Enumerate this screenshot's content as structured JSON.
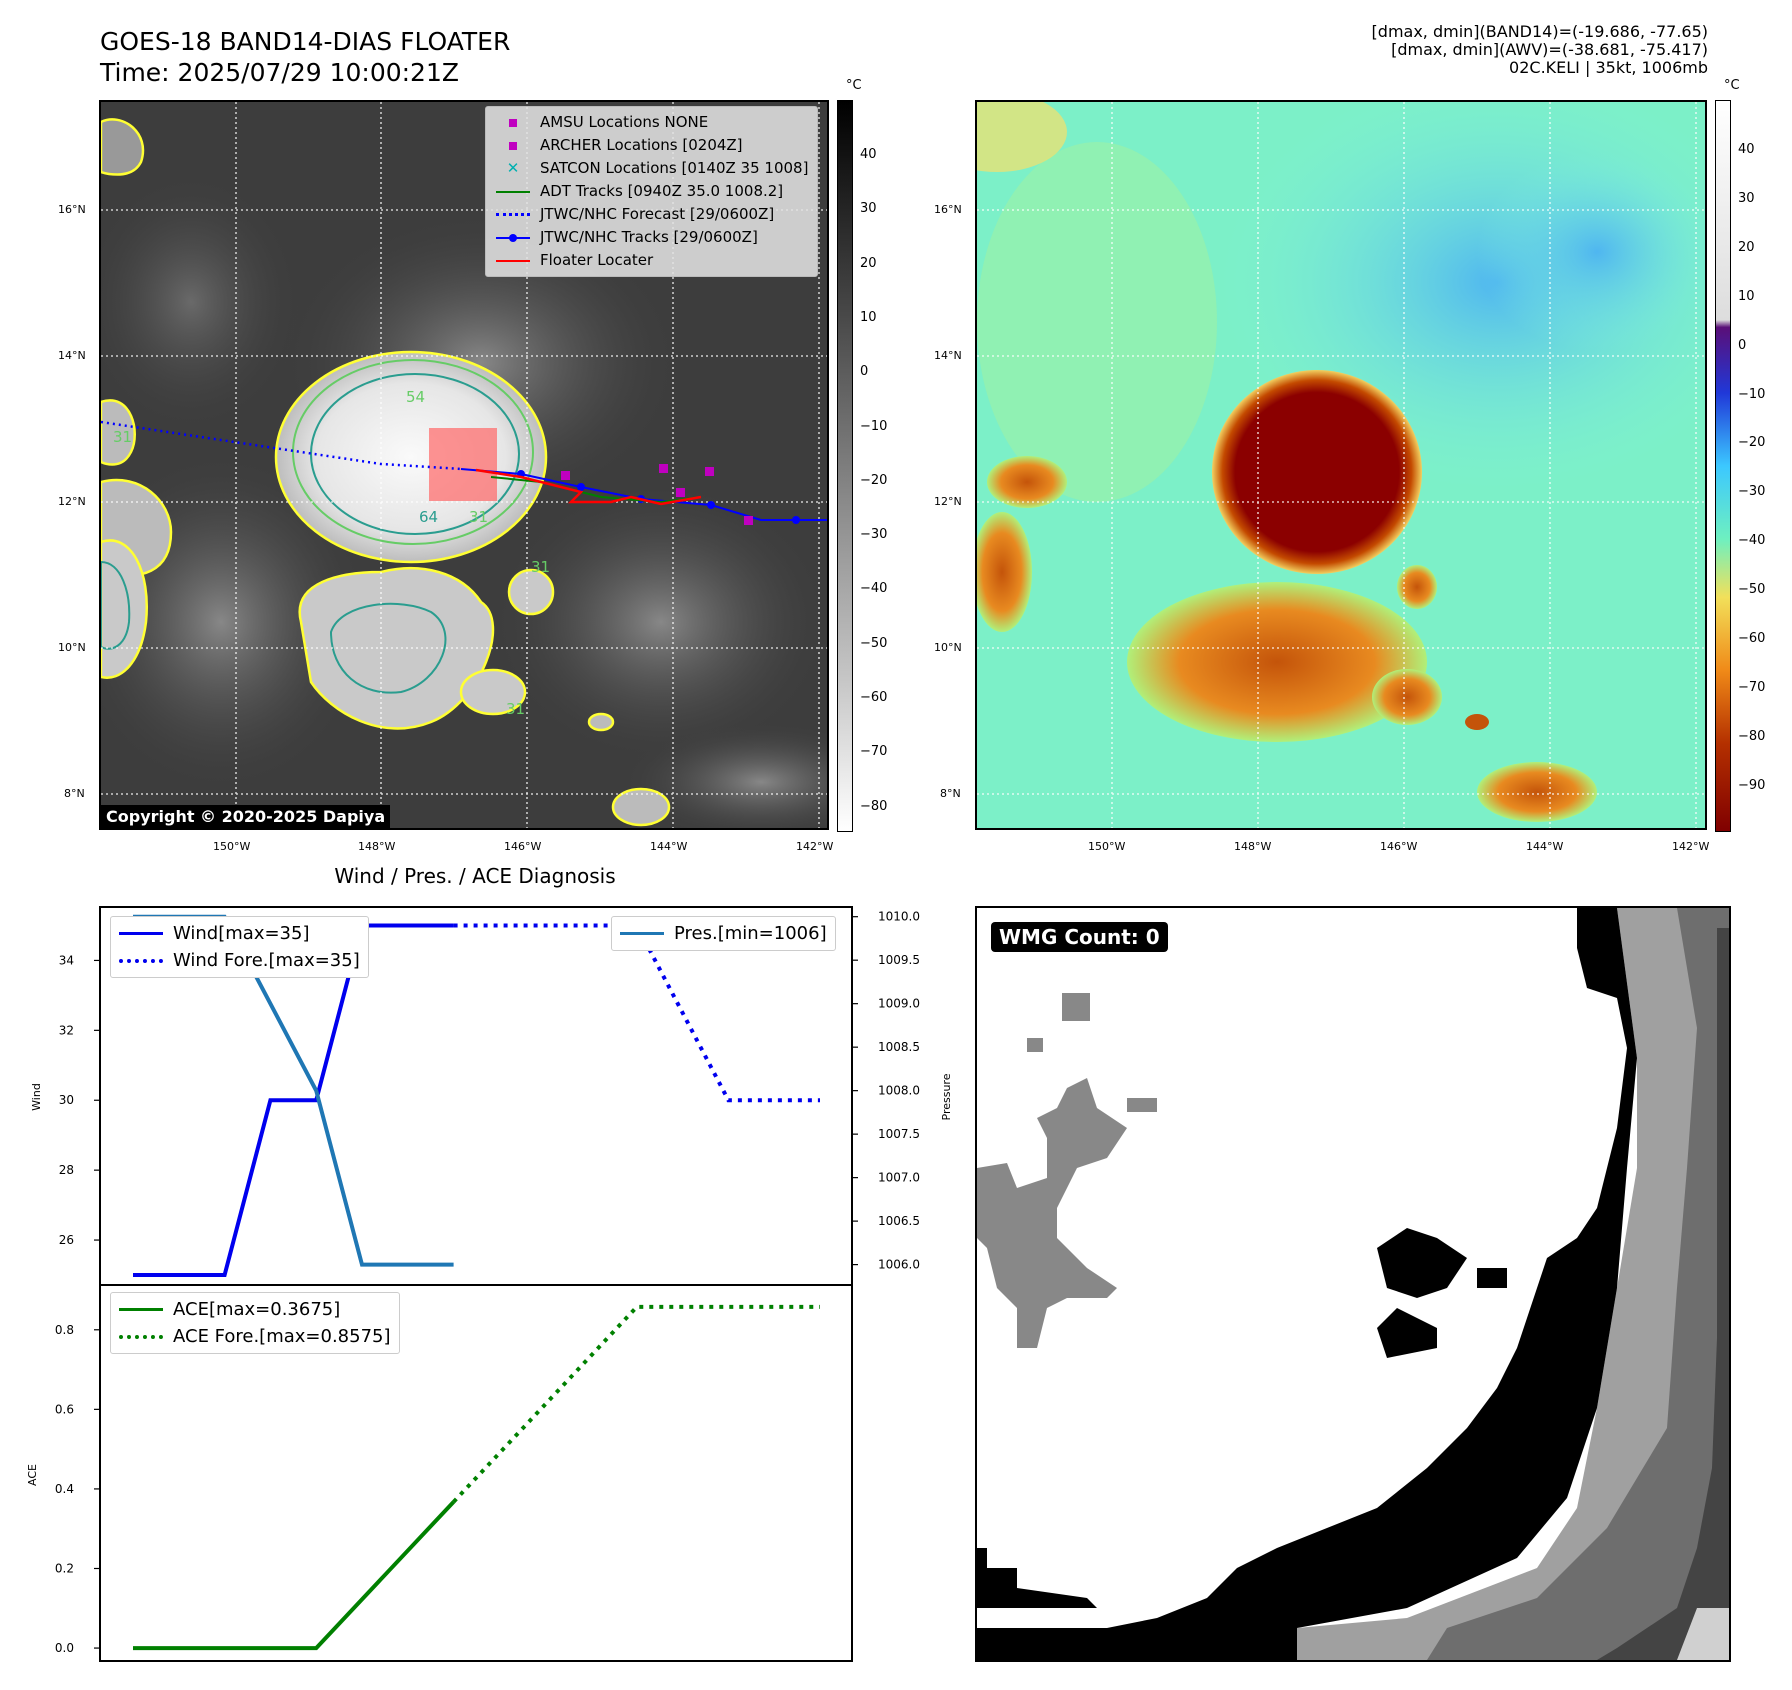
{
  "header": {
    "title_line1": "GOES-18 BAND14-DIAS FLOATER",
    "title_line2": "Time: 2025/07/29 10:00:21Z",
    "info_line1": "[dmax, dmin](BAND14)=(-19.686, -77.65)",
    "info_line2": "[dmax, dmin](AWV)=(-38.681, -75.417)",
    "info_line3": "02C.KELI | 35kt, 1006mb"
  },
  "map_axes": {
    "lat_labels": [
      "16°N",
      "14°N",
      "12°N",
      "10°N",
      "8°N"
    ],
    "lon_labels": [
      "150°W",
      "148°W",
      "146°W",
      "144°W",
      "142°W"
    ]
  },
  "ir_panel": {
    "copyright": "Copyright © 2020-2025 Dapiya",
    "contour_labels": [
      "54",
      "31",
      "64",
      "31",
      "31",
      "31"
    ],
    "legend": [
      {
        "label": "AMSU Locations NONE",
        "symbol": "square",
        "color": "#c000c0"
      },
      {
        "label": "ARCHER Locations [0204Z]",
        "symbol": "square",
        "color": "#c000c0"
      },
      {
        "label": "SATCON Locations [0140Z 35 1008]",
        "symbol": "x",
        "color": "#00b0b0"
      },
      {
        "label": "ADT Tracks [0940Z 35.0 1008.2]",
        "symbol": "line",
        "color": "#008000"
      },
      {
        "label": "JTWC/NHC Forecast [29/0600Z]",
        "symbol": "dotted",
        "color": "#0000ff"
      },
      {
        "label": "JTWC/NHC Tracks [29/0600Z]",
        "symbol": "dotline",
        "color": "#0000ff"
      },
      {
        "label": "Floater Locater",
        "symbol": "line",
        "color": "#ff0000"
      }
    ]
  },
  "colorbar_ir": {
    "unit": "°C",
    "ticks": [
      "40",
      "30",
      "20",
      "10",
      "0",
      "−10",
      "−20",
      "−30",
      "−40",
      "−50",
      "−60",
      "−70",
      "−80"
    ]
  },
  "colorbar_awv": {
    "unit": "°C",
    "ticks": [
      "40",
      "30",
      "20",
      "10",
      "0",
      "−10",
      "−20",
      "−30",
      "−40",
      "−50",
      "−60",
      "−70",
      "−80",
      "−90"
    ]
  },
  "wmg_panel": {
    "label": "WMG Count: 0"
  },
  "chart_data": [
    {
      "type": "line",
      "title": "Wind / Pres. / ACE Diagnosis",
      "ylabel": "Wind",
      "ylabel_right": "Pressure",
      "ylim": [
        24.8,
        35.5
      ],
      "ylim_right": [
        1005.8,
        1010.1
      ],
      "y_ticks": [
        "26",
        "28",
        "30",
        "32",
        "34"
      ],
      "y_ticks_right": [
        "1010.0",
        "1009.5",
        "1009.0",
        "1008.5",
        "1008.0",
        "1007.5",
        "1007.0",
        "1006.5",
        "1006.0"
      ],
      "x": [
        0,
        1,
        2,
        3,
        4,
        5,
        6,
        7,
        8,
        9,
        10,
        11,
        12,
        13,
        14,
        15
      ],
      "series": [
        {
          "name": "Wind[max=35]",
          "axis": "left",
          "color": "#0000ee",
          "style": "solid",
          "x": [
            0,
            2,
            3,
            4,
            5,
            6,
            7
          ],
          "values": [
            25,
            25,
            30,
            30,
            35,
            35,
            35
          ]
        },
        {
          "name": "Wind Fore.[max=35]",
          "axis": "left",
          "color": "#0000ee",
          "style": "dotted",
          "x": [
            7,
            11,
            13,
            15
          ],
          "values": [
            35,
            35,
            30,
            30
          ]
        },
        {
          "name": "Pres.[min=1006]",
          "axis": "right",
          "color": "#1f77b4",
          "style": "solid",
          "x": [
            0,
            2,
            4,
            5,
            7
          ],
          "values": [
            1010,
            1010,
            1008,
            1006,
            1006
          ]
        }
      ]
    },
    {
      "type": "line",
      "ylabel": "ACE",
      "ylim": [
        -0.03,
        0.9
      ],
      "y_ticks": [
        "0.0",
        "0.2",
        "0.4",
        "0.6",
        "0.8"
      ],
      "series": [
        {
          "name": "ACE[max=0.3675]",
          "color": "#008000",
          "style": "solid",
          "x": [
            0,
            4,
            7
          ],
          "values": [
            0,
            0,
            0.3675
          ]
        },
        {
          "name": "ACE Fore.[max=0.8575]",
          "color": "#008000",
          "style": "dotted",
          "x": [
            7,
            11,
            15
          ],
          "values": [
            0.3675,
            0.8575,
            0.8575
          ]
        }
      ]
    }
  ]
}
